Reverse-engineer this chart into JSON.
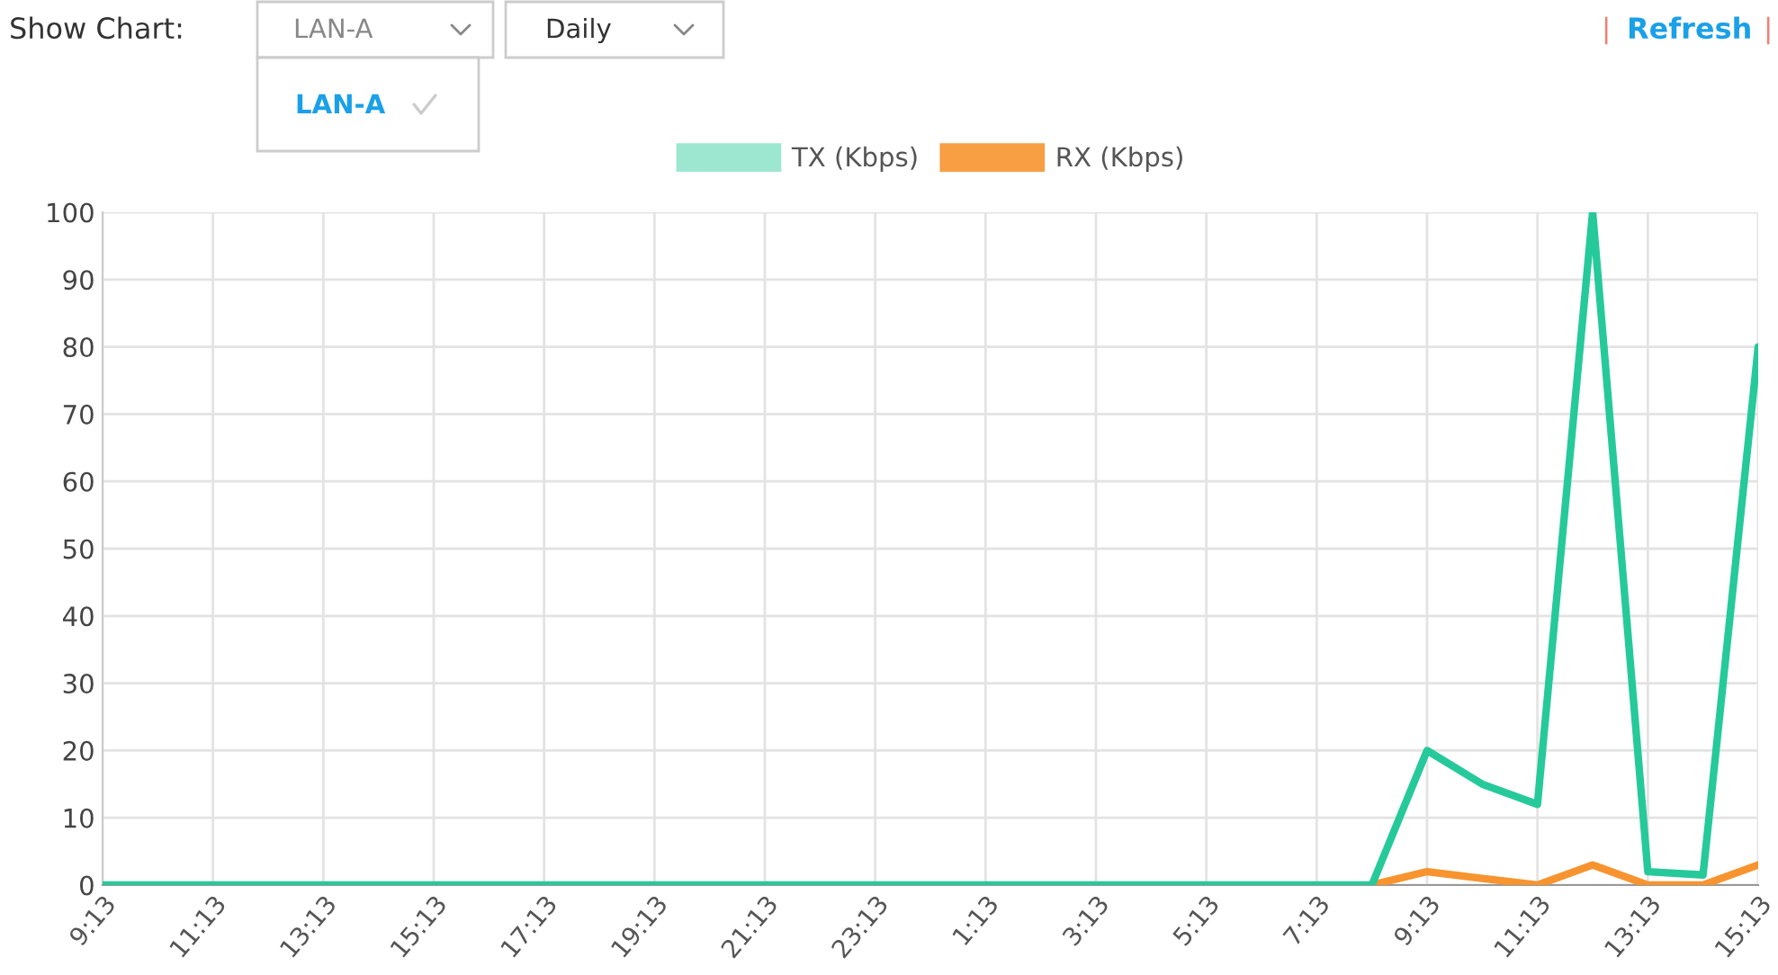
{
  "chart_data": {
    "type": "line",
    "annotations": [
      "Show Chart:",
      "LAN-A",
      "Daily",
      "LAN-A",
      "|",
      "Refresh",
      "|"
    ],
    "categories": [
      "9:13",
      null,
      "11:13",
      null,
      "13:13",
      null,
      "15:13",
      null,
      "17:13",
      null,
      "19:13",
      null,
      "21:13",
      null,
      "23:13",
      null,
      "1:13",
      null,
      "3:13",
      null,
      "5:13",
      null,
      "7:13",
      null,
      "9:13",
      null,
      "11:13",
      null,
      "13:13",
      null,
      "15:13"
    ],
    "series": [
      {
        "name": "TX (Kbps)",
        "color": "#26c99a",
        "values": [
          0,
          0,
          0,
          0,
          0,
          0,
          0,
          0,
          0,
          0,
          0,
          0,
          0,
          0,
          0,
          0,
          0,
          0,
          0,
          0,
          0,
          0,
          0,
          0,
          20,
          15,
          12,
          100,
          2,
          1.5,
          80
        ]
      },
      {
        "name": "RX (Kbps)",
        "color": "#f7942f",
        "values": [
          null,
          null,
          null,
          null,
          null,
          null,
          null,
          null,
          null,
          null,
          null,
          null,
          null,
          null,
          null,
          null,
          null,
          null,
          null,
          null,
          null,
          null,
          null,
          0,
          2,
          1,
          0,
          3,
          0,
          0,
          3
        ]
      }
    ],
    "ylim": [
      0,
      100
    ],
    "yticks": [
      0,
      10,
      20,
      30,
      40,
      50,
      60,
      70,
      80,
      90,
      100
    ],
    "grid": true,
    "legend": "top",
    "marker": "none",
    "line_style": "solid"
  }
}
